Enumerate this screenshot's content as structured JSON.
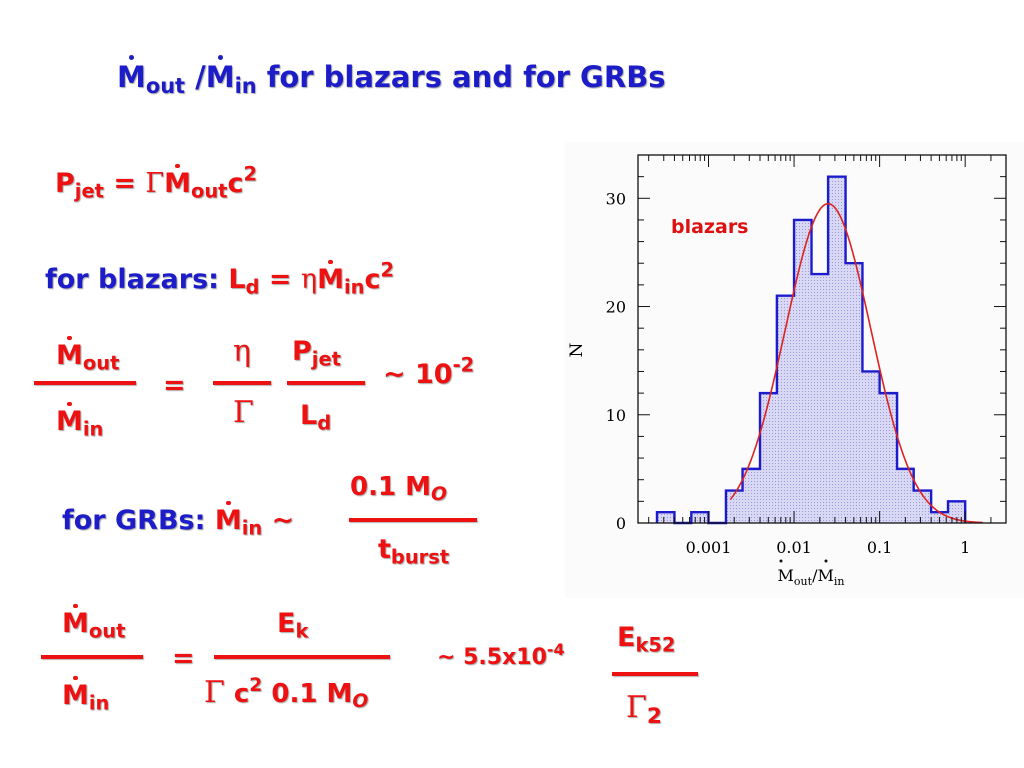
{
  "slide": {
    "title": {
      "m": "M",
      "sub_out": "out",
      "sep": " /",
      "m2": "M",
      "sub_in": "in",
      "rest": " for blazars and for GRBs"
    },
    "pjet": {
      "p": "P",
      "p_sub": "jet",
      "eq": " = ",
      "gamma": "Γ",
      "m": "M",
      "m_sub": "out",
      "c": "c",
      "c_sup": "2"
    },
    "blazars_line": {
      "label": "for blazars:",
      "l": " L",
      "l_sub": "d",
      "eq": " = ",
      "eta": "η",
      "m": "M",
      "m_sub": "in",
      "c": "c",
      "c_sup": "2"
    },
    "ratio1": {
      "num_m": "M",
      "num_sub": "out",
      "den_m": "M",
      "den_sub": "in",
      "eq": "=",
      "eta": "η",
      "gamma": "Γ",
      "pjet_p": "P",
      "pjet_sub": "jet",
      "ld_l": "L",
      "ld_sub": "d",
      "approx": "~ 10",
      "approx_sup": "-2"
    },
    "grbs_line": {
      "label": "for GRBs:",
      "m": "M",
      "m_sub": "in",
      "tilde": " ~",
      "num": "0.1 M",
      "num_sub": "O",
      "den_t": "t",
      "den_sub": "burst"
    },
    "ratio2": {
      "num_m": "M",
      "num_sub": "out",
      "den_m": "M",
      "den_sub": "in",
      "eq": "=",
      "ek_e": "E",
      "ek_sub": "k",
      "gamma": "Γ",
      "c": " c",
      "c_sup": "2",
      "mass": "0.1 M",
      "mass_sub": "O",
      "approx": "~ 5.5x10",
      "approx_sup": "-4",
      "ek52_e": "E",
      "ek52_sub": "k52",
      "gamma2": "Γ",
      "gamma2_sub": "2"
    }
  },
  "chart_data": {
    "type": "bar",
    "label": "blazars",
    "ylabel": "N",
    "xlabel": {
      "m1": "M",
      "sub1": "out",
      "slash": "/",
      "m2": "M",
      "sub2": "in"
    },
    "x_scale": "log",
    "xlim": [
      0.00015,
      3.0
    ],
    "ylim": [
      0,
      34
    ],
    "x_ticks": [
      {
        "v": 0.001,
        "label": "0.001"
      },
      {
        "v": 0.01,
        "label": "0.01"
      },
      {
        "v": 0.1,
        "label": "0.1"
      },
      {
        "v": 1,
        "label": "1"
      }
    ],
    "y_ticks": [
      {
        "v": 0,
        "label": "0"
      },
      {
        "v": 10,
        "label": "10"
      },
      {
        "v": 20,
        "label": "20"
      },
      {
        "v": 30,
        "label": "30"
      }
    ],
    "bins": [
      {
        "x0": 0.00025,
        "x1": 0.0004,
        "n": 1
      },
      {
        "x0": 0.0004,
        "x1": 0.00063,
        "n": 0
      },
      {
        "x0": 0.00063,
        "x1": 0.001,
        "n": 1
      },
      {
        "x0": 0.001,
        "x1": 0.0016,
        "n": 0
      },
      {
        "x0": 0.0016,
        "x1": 0.0025,
        "n": 3
      },
      {
        "x0": 0.0025,
        "x1": 0.004,
        "n": 5
      },
      {
        "x0": 0.004,
        "x1": 0.0063,
        "n": 12
      },
      {
        "x0": 0.0063,
        "x1": 0.01,
        "n": 21
      },
      {
        "x0": 0.01,
        "x1": 0.016,
        "n": 28
      },
      {
        "x0": 0.016,
        "x1": 0.025,
        "n": 23
      },
      {
        "x0": 0.025,
        "x1": 0.04,
        "n": 32
      },
      {
        "x0": 0.04,
        "x1": 0.063,
        "n": 24
      },
      {
        "x0": 0.063,
        "x1": 0.1,
        "n": 14
      },
      {
        "x0": 0.1,
        "x1": 0.16,
        "n": 12
      },
      {
        "x0": 0.16,
        "x1": 0.25,
        "n": 5
      },
      {
        "x0": 0.25,
        "x1": 0.4,
        "n": 3
      },
      {
        "x0": 0.4,
        "x1": 0.63,
        "n": 1
      },
      {
        "x0": 0.63,
        "x1": 1.0,
        "n": 2
      }
    ],
    "fit": {
      "type": "lognormal-gaussian",
      "peak_n": 29.5,
      "peak_x": 0.025,
      "sigma_log10": 0.5
    },
    "colors": {
      "hist": "#1c1ccc",
      "fill": "#d8d8f4",
      "fit": "#dd2222",
      "label": "#dd1111"
    }
  }
}
